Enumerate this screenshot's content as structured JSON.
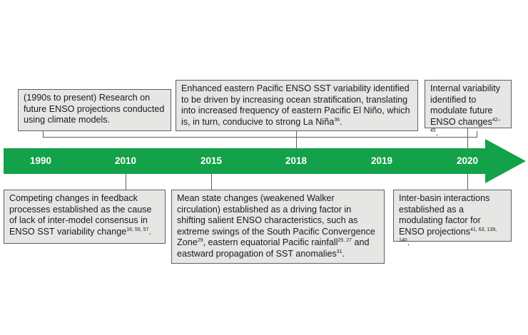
{
  "colors": {
    "arrow": "#13a14a",
    "box_bg": "#e6e6e5",
    "box_border": "#5e5e5e",
    "year_text": "#ffffff"
  },
  "years": [
    "1990",
    "2010",
    "2015",
    "2018",
    "2019",
    "2020"
  ],
  "boxes": {
    "b1990": {
      "text": "(1990s to present) Research on future ENSO projections conducted using climate models.",
      "refs": ""
    },
    "b2010": {
      "text": "Competing changes in feedback processes established as the cause of lack of inter-model consensus in ENSO SST variability change",
      "refs": "16, 55, 57",
      "tail": "."
    },
    "b2015": {
      "text": "Mean state changes (weakened Walker circulation) established as a driving factor in shifting salient ENSO characteristics, such as extreme swings of the South Pacific Convergence Zone",
      "refs": "29",
      "mid1": ", eastern equatorial Pacific rainfall",
      "refs2": "25, 27",
      "mid2": " and eastward propagation of SST anomalies",
      "refs3": "31",
      "tail": "."
    },
    "b2018": {
      "text": "Enhanced eastern Pacific ENSO SST variability identified to be driven by increasing ocean stratification, translating into increased frequency of eastern Pacific El Niño, which is, in turn, conducive to strong La Niña",
      "refs": "36",
      "tail": "."
    },
    "b2020top": {
      "text": "Internal variability identified to modulate future ENSO changes",
      "refs": "42–45",
      "tail": "."
    },
    "b2020bottom": {
      "text": "Inter-basin interactions established as a modulating factor for ENSO projections",
      "refs": "41, 63, 139, 140",
      "tail": "."
    }
  }
}
